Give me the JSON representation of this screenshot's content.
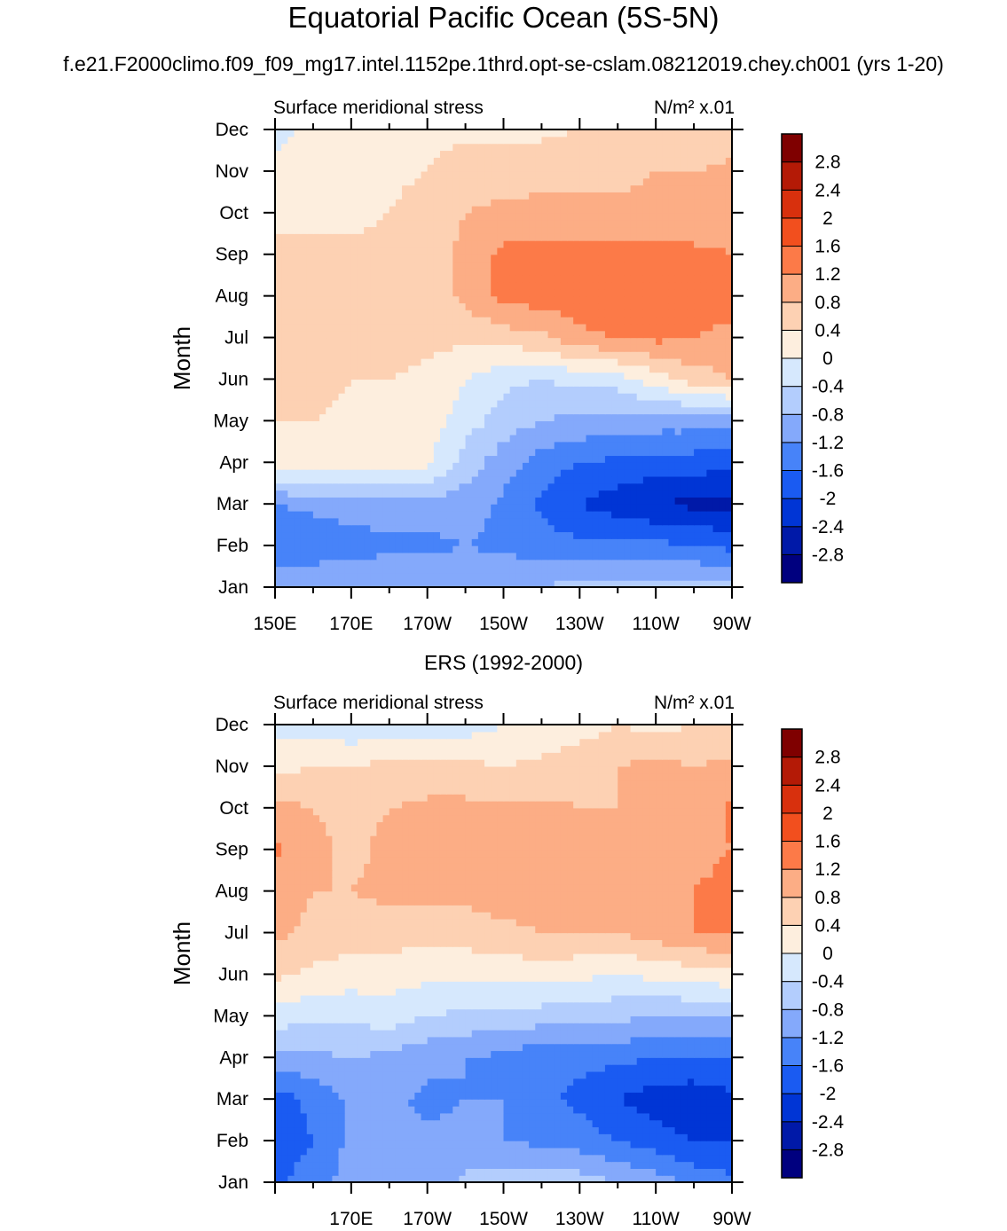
{
  "header": {
    "title": "Equatorial Pacific Ocean (5S-5N)",
    "case": "f.e21.F2000climo.f09_f09_mg17.intel.1152pe.1thrd.opt-se-cslam.08212019.chey.ch001 (yrs 1-20)"
  },
  "colors": {
    "levels_palette": [
      "#00007f",
      "#0019a8",
      "#0035d5",
      "#1a5bf2",
      "#4783f9",
      "#84a9fb",
      "#b3cdfd",
      "#d6e8fd",
      "#fdeede",
      "#fdd1b3",
      "#fcad85",
      "#fc7a48",
      "#f24f1e",
      "#d8300d",
      "#b41a06",
      "#7f0000"
    ]
  },
  "chart_data": [
    {
      "type": "heatmap",
      "panel_title": "",
      "left_label": "Surface meridional stress",
      "right_label": "N/m² x.01",
      "ylabel": "Month",
      "xticks": [
        "150E",
        "170E",
        "170W",
        "150W",
        "130W",
        "110W",
        "90W"
      ],
      "yticks": [
        "Jan",
        "Feb",
        "Mar",
        "Apr",
        "May",
        "Jun",
        "Jul",
        "Aug",
        "Sep",
        "Oct",
        "Nov",
        "Dec"
      ],
      "xlim": [
        "150E",
        "90W"
      ],
      "colorbar_levels": [
        "-2.8",
        "-2.4",
        "-2",
        "-1.6",
        "-1.2",
        "-0.8",
        "-0.4",
        "0",
        "0.4",
        "0.8",
        "1.2",
        "1.6",
        "2",
        "2.4",
        "2.8"
      ],
      "x_lon": [
        "150E",
        "160E",
        "170E",
        "180",
        "170W",
        "160W",
        "150W",
        "140W",
        "130W",
        "120W",
        "110W",
        "100W",
        "90W"
      ],
      "values": [
        [
          -0.8,
          -0.8,
          -0.8,
          -0.8,
          -0.8,
          -0.8,
          -0.8,
          -0.8,
          -0.6,
          -0.6,
          -0.6,
          -0.6,
          -0.7
        ],
        [
          -1.6,
          -1.5,
          -1.4,
          -1.3,
          -1.3,
          -1.2,
          -1.3,
          -1.4,
          -1.5,
          -1.5,
          -1.5,
          -1.6,
          -1.7
        ],
        [
          -1.2,
          -1.1,
          -1.0,
          -1.0,
          -1.0,
          -1.0,
          -1.3,
          -1.7,
          -2.0,
          -2.2,
          -2.4,
          -2.5,
          -2.5
        ],
        [
          0.3,
          0.3,
          0.3,
          0.2,
          0.1,
          -0.6,
          -1.0,
          -1.4,
          -1.6,
          -1.7,
          -1.8,
          -1.8,
          -1.9
        ],
        [
          0.4,
          0.4,
          0.3,
          0.3,
          0.2,
          -0.2,
          -0.6,
          -0.8,
          -0.9,
          -1.0,
          -1.0,
          -1.0,
          -1.1
        ],
        [
          0.5,
          0.5,
          0.4,
          0.4,
          0.3,
          0.0,
          -0.3,
          -0.4,
          -0.3,
          -0.2,
          0.2,
          0.6,
          0.8
        ],
        [
          0.6,
          0.6,
          0.6,
          0.6,
          0.5,
          0.5,
          0.6,
          0.7,
          1.1,
          1.2,
          1.3,
          1.2,
          1.0
        ],
        [
          0.6,
          0.6,
          0.6,
          0.6,
          0.6,
          0.9,
          1.3,
          1.4,
          1.4,
          1.5,
          1.5,
          1.6,
          1.5
        ],
        [
          0.5,
          0.5,
          0.5,
          0.5,
          0.6,
          0.9,
          1.3,
          1.4,
          1.4,
          1.4,
          1.3,
          1.3,
          1.2
        ],
        [
          0.3,
          0.3,
          0.3,
          0.4,
          0.6,
          0.8,
          0.9,
          0.9,
          0.9,
          0.9,
          0.9,
          0.9,
          1.0
        ],
        [
          0.2,
          0.2,
          0.2,
          0.3,
          0.4,
          0.6,
          0.6,
          0.7,
          0.7,
          0.7,
          0.8,
          0.8,
          0.9
        ],
        [
          -0.2,
          0.2,
          0.2,
          0.3,
          0.3,
          0.3,
          0.3,
          0.3,
          0.4,
          0.4,
          0.4,
          0.4,
          0.6
        ]
      ]
    },
    {
      "type": "heatmap",
      "panel_title": "ERS (1992-2000)",
      "left_label": "Surface meridional stress",
      "right_label": "N/m² x.01",
      "ylabel": "Month",
      "xticks": [
        "170E",
        "170W",
        "150W",
        "130W",
        "110W",
        "90W"
      ],
      "yticks": [
        "Jan",
        "Feb",
        "Mar",
        "Apr",
        "May",
        "Jun",
        "Jul",
        "Aug",
        "Sep",
        "Oct",
        "Nov",
        "Dec"
      ],
      "xlim": [
        "150E",
        "90W"
      ],
      "colorbar_levels": [
        "-2.8",
        "-2.4",
        "-2",
        "-1.6",
        "-1.2",
        "-0.8",
        "-0.4",
        "0",
        "0.4",
        "0.8",
        "1.2",
        "1.6",
        "2",
        "2.4",
        "2.8"
      ],
      "x_lon": [
        "150E",
        "160E",
        "170E",
        "180",
        "170W",
        "160W",
        "150W",
        "140W",
        "130W",
        "120W",
        "110W",
        "100W",
        "90W"
      ],
      "values": [
        [
          -1.7,
          -1.4,
          -1.0,
          -1.2,
          -1.0,
          -0.7,
          -0.6,
          -0.5,
          -0.6,
          -0.8,
          -1.0,
          -1.3,
          -1.5
        ],
        [
          -1.8,
          -1.6,
          -1.1,
          -1.2,
          -1.1,
          -1.1,
          -1.2,
          -1.3,
          -1.4,
          -1.6,
          -1.8,
          -2.0,
          -2.0
        ],
        [
          -1.8,
          -1.5,
          -1.1,
          -1.1,
          -1.3,
          -1.2,
          -1.2,
          -1.5,
          -1.7,
          -2.0,
          -2.2,
          -2.3,
          -2.1
        ],
        [
          -0.9,
          -0.9,
          -0.8,
          -0.9,
          -1.1,
          -1.2,
          -1.3,
          -1.5,
          -1.5,
          -1.5,
          -1.6,
          -1.6,
          -1.6
        ],
        [
          -0.2,
          -0.3,
          -0.3,
          -0.2,
          -0.4,
          -0.5,
          -0.5,
          -0.6,
          -0.7,
          -0.7,
          -0.8,
          -0.8,
          -0.8
        ],
        [
          0.5,
          0.3,
          0.2,
          0.2,
          0.1,
          0.1,
          0.1,
          0.2,
          0.1,
          0.0,
          0.1,
          0.2,
          0.3
        ],
        [
          0.9,
          0.7,
          0.6,
          0.6,
          0.5,
          0.6,
          0.7,
          0.8,
          0.8,
          0.8,
          1.0,
          1.2,
          1.2
        ],
        [
          1.0,
          0.8,
          0.8,
          0.9,
          0.9,
          0.9,
          1.0,
          1.0,
          0.9,
          0.9,
          1.0,
          1.2,
          1.3
        ],
        [
          1.3,
          0.9,
          0.7,
          0.9,
          1.0,
          0.9,
          1.0,
          1.0,
          1.0,
          0.9,
          0.9,
          1.1,
          1.2
        ],
        [
          0.9,
          0.8,
          0.7,
          0.8,
          0.9,
          0.9,
          0.9,
          0.9,
          0.8,
          0.8,
          0.8,
          0.9,
          1.3
        ],
        [
          0.3,
          0.4,
          0.4,
          0.5,
          0.5,
          0.5,
          0.4,
          0.5,
          0.7,
          0.8,
          0.9,
          0.8,
          0.9
        ],
        [
          -0.2,
          -0.2,
          -0.3,
          -0.2,
          -0.2,
          -0.2,
          0.0,
          0.1,
          0.2,
          0.4,
          0.3,
          0.4,
          0.4
        ]
      ]
    }
  ]
}
